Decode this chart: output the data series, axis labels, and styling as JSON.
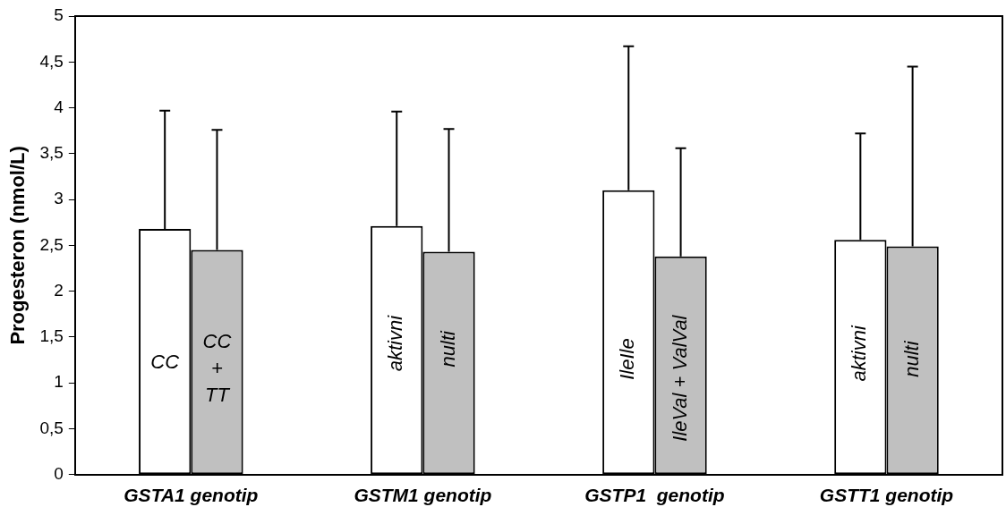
{
  "chart_data": {
    "type": "bar",
    "ylabel": "Progesteron (nmol/L)",
    "categories": [
      "GSTA1 genotip",
      "GSTM1 genotip",
      "GSTP1  genotip",
      "GSTT1 genotip"
    ],
    "series": [
      {
        "color": "#ffffff",
        "values": [
          2.68,
          2.71,
          3.1,
          2.56
        ],
        "errors": [
          [
            2.68,
            3.97
          ],
          [
            2.71,
            3.96
          ],
          [
            3.1,
            4.67
          ],
          [
            2.56,
            3.72
          ]
        ]
      },
      {
        "color": "#c0c0c0",
        "values": [
          2.45,
          2.43,
          2.38,
          2.49
        ],
        "errors": [
          [
            2.45,
            3.76
          ],
          [
            2.43,
            3.77
          ],
          [
            2.38,
            3.56
          ],
          [
            2.49,
            4.45
          ]
        ]
      }
    ],
    "ylim": [
      0,
      5
    ],
    "yticks": [
      0,
      {
        "value": 0.5,
        "label": "0,5"
      },
      1,
      {
        "value": 1.5,
        "label": "1,5"
      },
      2,
      {
        "value": 2.5,
        "label": "2,5"
      },
      3,
      {
        "value": 3.5,
        "label": "3,5"
      },
      4,
      {
        "value": 4.5,
        "label": "4,5"
      },
      5
    ],
    "grid": false,
    "legend": false,
    "annotations": [
      {
        "text": "CC",
        "x": "GSTA1 genotip",
        "y": 1.22
      },
      {
        "text": "CC + TT",
        "x": "GSTA1 genotip",
        "y": 1.15
      },
      {
        "text": "aktivni",
        "x": "GSTM1 genotip",
        "y": 1.43
      },
      {
        "text": "nulti",
        "x": "GSTM1 genotip",
        "y": 1.37
      },
      {
        "text": "IleIle",
        "x": "GSTP1  genotip",
        "y": 1.26
      },
      {
        "text": "IleVal + ValVal",
        "x": "GSTP1  genotip",
        "y": 1.05
      },
      {
        "text": "aktivni",
        "x": "GSTT1 genotip",
        "y": 1.32
      },
      {
        "text": "nulti",
        "x": "GSTT1 genotip",
        "y": 1.26
      }
    ]
  }
}
